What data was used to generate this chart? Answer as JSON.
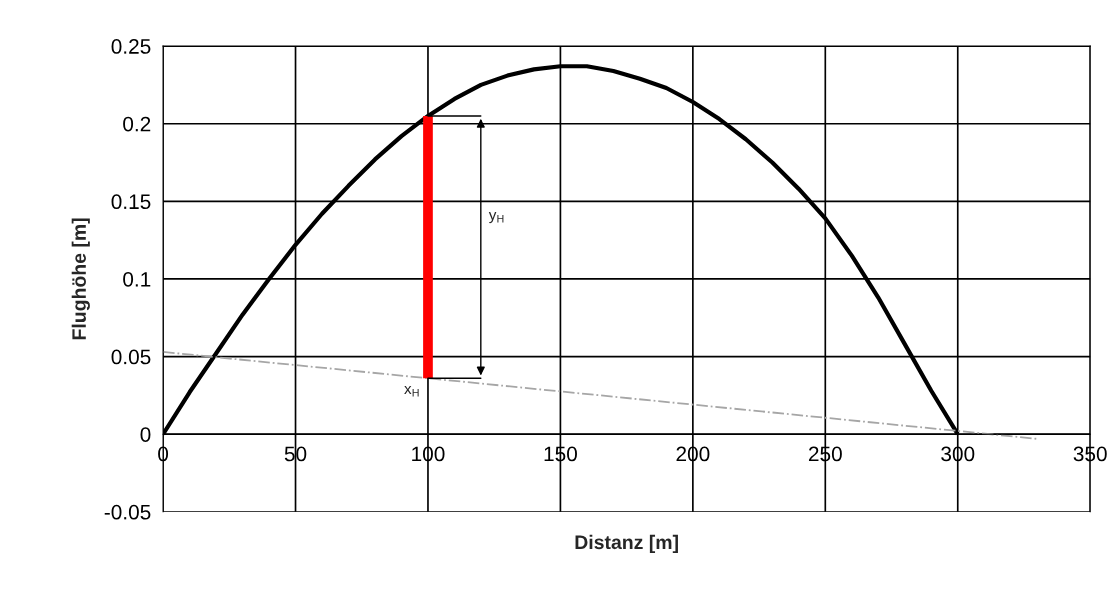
{
  "chart_data": {
    "type": "line",
    "xlabel": "Distanz [m]",
    "ylabel": "Flughöhe [m]",
    "series": [
      {
        "color": "#000000",
        "line_style": "solid",
        "x": [
          0,
          10,
          20,
          30,
          40,
          50,
          60,
          70,
          80,
          90,
          100,
          110,
          120,
          130,
          140,
          150,
          160,
          170,
          180,
          190,
          200,
          210,
          220,
          230,
          240,
          250,
          260,
          270,
          280,
          290,
          300
        ],
        "values": [
          0,
          0.027,
          0.052,
          0.077,
          0.1,
          0.122,
          0.142,
          0.16,
          0.177,
          0.192,
          0.205,
          0.216,
          0.225,
          0.231,
          0.235,
          0.237,
          0.237,
          0.234,
          0.229,
          0.223,
          0.214,
          0.203,
          0.19,
          0.175,
          0.158,
          0.139,
          0.115,
          0.088,
          0.058,
          0.028,
          0
        ]
      },
      {
        "color": "#a6a6a6",
        "line_style": "dashdot",
        "x": [
          0,
          330
        ],
        "values": [
          0.053,
          -0.003
        ]
      },
      {
        "color": "#ff0000",
        "line_style": "solid",
        "x": [
          100,
          100
        ],
        "values": [
          0.036,
          0.205
        ]
      }
    ],
    "annotations": [
      "y$_{H}$",
      {
        "text": "x$_{H}$",
        "x": 100,
        "y": 0.036
      }
    ],
    "xlim": [
      0,
      350
    ],
    "xticks": [
      0,
      50,
      100,
      150,
      200,
      250,
      300,
      350
    ],
    "ylim": [
      -0.05,
      0.25
    ],
    "yticks": [
      -0.05,
      0,
      0.05,
      0.1,
      0.15,
      0.2,
      0.25
    ],
    "grid": true,
    "legend": false,
    "marker": "none"
  }
}
